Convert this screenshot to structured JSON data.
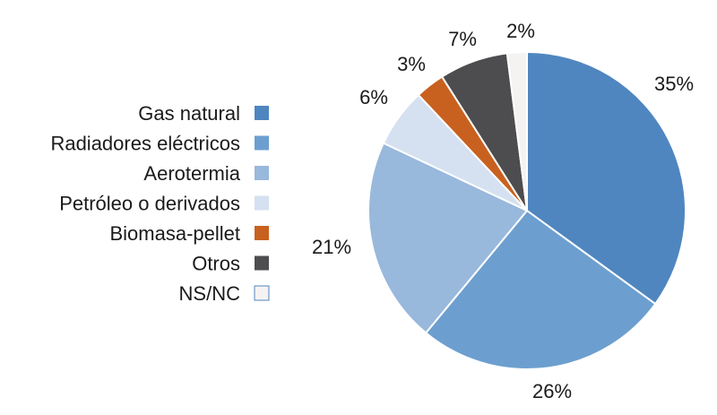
{
  "chart_data": {
    "type": "pie",
    "title": "",
    "categories": [
      "Gas natural",
      "Radiadores eléctricos",
      "Aerotermia",
      "Petróleo o derivados",
      "Biomasa-pellet",
      "Otros",
      "NS/NC"
    ],
    "values": [
      35,
      26,
      21,
      6,
      3,
      7,
      2
    ],
    "labels": [
      "35%",
      "26%",
      "21%",
      "6%",
      "3%",
      "7%",
      "2%"
    ],
    "colors": [
      "#4f86c0",
      "#6c9fcf",
      "#98b8dc",
      "#d5e1f1",
      "#c8611f",
      "#4d4c4e",
      "#f5f3f2"
    ],
    "legend_position": "left"
  }
}
